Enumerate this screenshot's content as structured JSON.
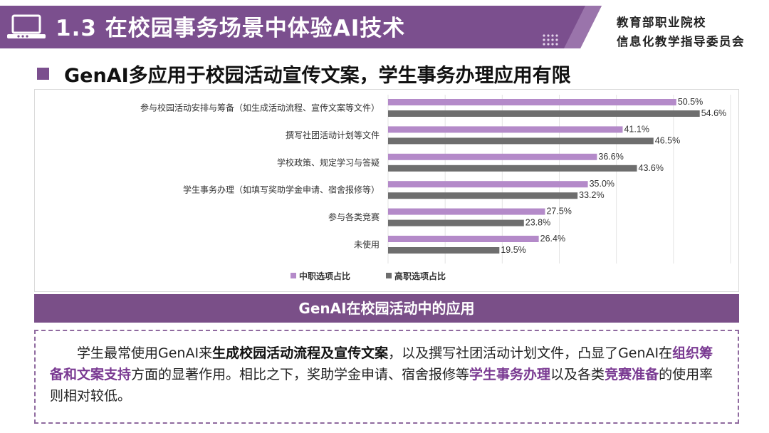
{
  "header": {
    "title": "1.3 在校园事务场景中体验AI技术",
    "committee_line1": "教育部职业院校",
    "committee_line2": "信息化教学指导委员会"
  },
  "subheading": "GenAI多应用于校园活动宣传文案，学生事务办理应用有限",
  "chart_data": {
    "type": "bar",
    "orientation": "horizontal",
    "categories": [
      "参与校园活动安排与筹备（如生成活动流程、宣传文案等文件）",
      "撰写社团活动计划等文件",
      "学校政策、规定学习与答疑",
      "学生事务办理（如填写奖助学金申请、宿舍报修等）",
      "参与各类竞赛",
      "未使用"
    ],
    "series": [
      {
        "name": "中职选项占比",
        "values": [
          50.5,
          41.1,
          36.6,
          35.0,
          27.5,
          26.4
        ],
        "labels": [
          "50.5%",
          "41.1%",
          "36.6%",
          "35.0%",
          "27.5%",
          "26.4%"
        ],
        "color": "#b48ac9"
      },
      {
        "name": "高职选项占比",
        "values": [
          54.6,
          46.5,
          43.6,
          33.2,
          23.8,
          19.5
        ],
        "labels": [
          "54.6%",
          "46.5%",
          "43.6%",
          "33.2%",
          "23.8%",
          "19.5%"
        ],
        "color": "#6e6e6e"
      }
    ],
    "xlim": [
      0,
      60
    ],
    "grid": true,
    "legend": "bottom"
  },
  "caption": "GenAI在校园活动中的应用",
  "description": {
    "p1": "学生最常使用GenAI来",
    "b1": "生成校园活动流程及宣传文案",
    "p2": "，以及撰写社团活动计划文件，凸显了GenAI在",
    "b2": "组织筹备和文案支持",
    "p3": "方面的显著作用。相比之下，奖助学金申请、宿舍报修等",
    "b3": "学生事务办理",
    "p4": "以及各类",
    "b4": "竞赛准备",
    "p5": "的使用率则相对较低。"
  }
}
